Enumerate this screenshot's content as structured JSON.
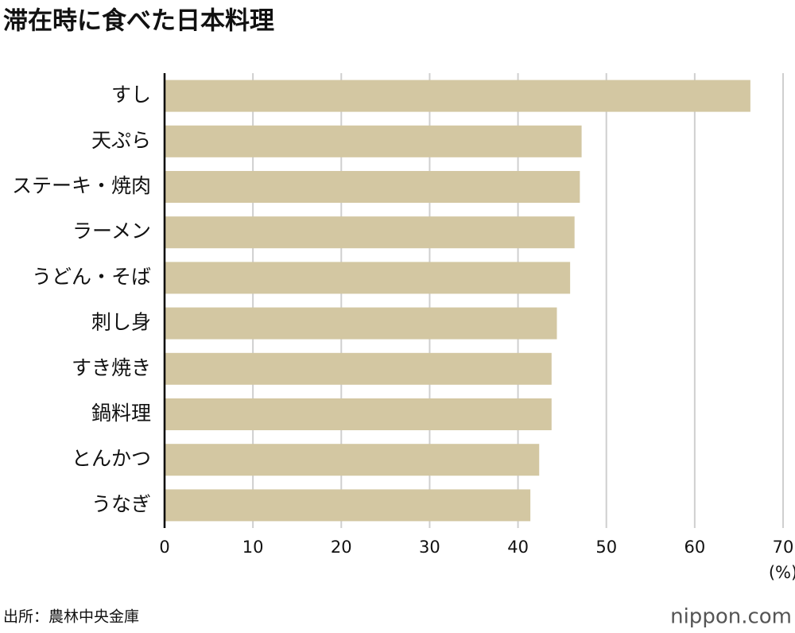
{
  "chart_data": {
    "type": "bar",
    "orientation": "horizontal",
    "title": "滞在時に食べた日本料理",
    "categories": [
      "すし",
      "天ぷら",
      "ステーキ・焼肉",
      "ラーメン",
      "うどん・そば",
      "刺し身",
      "すき焼き",
      "鍋料理",
      "とんかつ",
      "うなぎ"
    ],
    "values": [
      66.3,
      47.2,
      47.0,
      46.4,
      45.9,
      44.4,
      43.8,
      43.8,
      42.4,
      41.4
    ],
    "color": "#d3c7a2",
    "xlim": [
      0,
      70
    ],
    "xticks": [
      0,
      10,
      20,
      30,
      40,
      50,
      60,
      70
    ],
    "grid": true,
    "unit_label": "(%)",
    "source": "出所：農林中央金庫",
    "logo": "nippon.com"
  }
}
